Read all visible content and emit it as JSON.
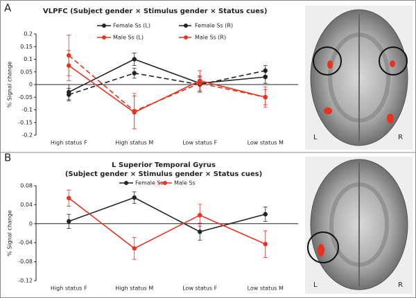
{
  "chart_data": [
    {
      "type": "line",
      "panel_label": "A",
      "title": "VLPFC (Subject gender × Stimulus gender × Status cues)",
      "ylabel": "% Signal change",
      "categories": [
        "High status F",
        "High status M",
        "Low status F",
        "Low status M"
      ],
      "ylim": [
        -0.2,
        0.2
      ],
      "yticks": [
        -0.2,
        -0.15,
        -0.1,
        -0.05,
        0,
        0.05,
        0.1,
        0.15,
        0.2
      ],
      "series": [
        {
          "name": "Female Ss (L)",
          "color": "#222222",
          "dashed": false,
          "values": [
            -0.03,
            0.1,
            0.005,
            0.03
          ],
          "errors": [
            0.03,
            0.025,
            0.03,
            0.025
          ]
        },
        {
          "name": "Female Ss (R)",
          "color": "#222222",
          "dashed": true,
          "values": [
            -0.04,
            0.045,
            0.0,
            0.055
          ],
          "errors": [
            0.025,
            0.02,
            0.03,
            0.02
          ]
        },
        {
          "name": "Male Ss (L)",
          "color": "#e8321e",
          "dashed": false,
          "values": [
            0.075,
            -0.11,
            0.015,
            -0.05
          ],
          "errors": [
            0.06,
            0.065,
            0.04,
            0.04
          ]
        },
        {
          "name": "Male Ss (R)",
          "color": "#e8321e",
          "dashed": true,
          "values": [
            0.115,
            -0.105,
            0.005,
            -0.05
          ],
          "errors": [
            0.08,
            0.07,
            0.03,
            0.03
          ]
        }
      ],
      "image_labels": [
        "L",
        "R"
      ]
    },
    {
      "type": "line",
      "panel_label": "B",
      "title": "L Superior Temporal Gyrus",
      "subtitle": "(Subject gender × Stimulus gender × Status cues)",
      "ylabel": "% Signal change",
      "categories": [
        "High status F",
        "High status M",
        "Low status F",
        "Low status M"
      ],
      "ylim": [
        -0.12,
        0.08
      ],
      "yticks": [
        -0.12,
        -0.08,
        -0.04,
        0,
        0.04,
        0.08
      ],
      "series": [
        {
          "name": "Female Ss",
          "color": "#222222",
          "dashed": false,
          "values": [
            0.005,
            0.055,
            -0.017,
            0.02
          ],
          "errors": [
            0.015,
            0.012,
            0.018,
            0.015
          ]
        },
        {
          "name": "Male Ss",
          "color": "#e8321e",
          "dashed": false,
          "values": [
            0.054,
            -0.052,
            0.018,
            -0.043
          ],
          "errors": [
            0.017,
            0.023,
            0.023,
            0.028
          ]
        }
      ],
      "image_labels": [
        "L",
        "R"
      ]
    }
  ]
}
